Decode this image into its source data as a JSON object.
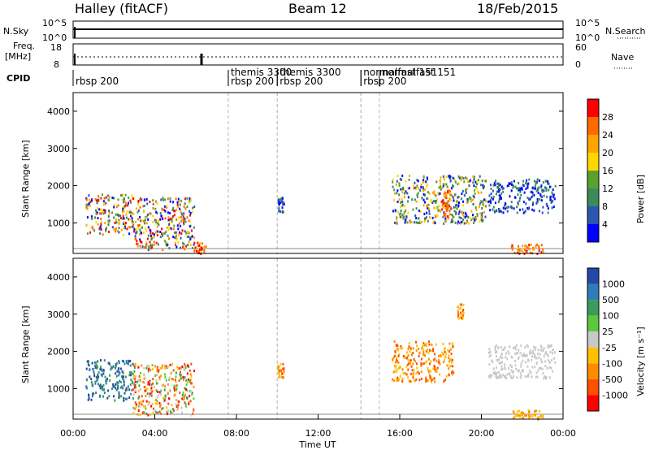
{
  "header": {
    "station": "Halley (fitACF)",
    "beam": "Beam 12",
    "date": "18/Feb/2015"
  },
  "strips": {
    "nsky_label": "N.Sky",
    "nsky_ticks": [
      "10^5",
      "10^0"
    ],
    "nsearch_label": "N.Search",
    "nsearch_ticks": [
      "10^5",
      "10^0"
    ],
    "freq_label_top": "Freq.",
    "freq_label_bottom": "[MHz]",
    "freq_ticks": [
      "18",
      "8"
    ],
    "nave_label": "Nave",
    "nave_ticks": [
      "60",
      "0"
    ],
    "cpid_label": "CPID"
  },
  "cpid_segments": [
    {
      "start_hour": 0.0,
      "label": "rbsp 200",
      "row": 2
    },
    {
      "start_hour": 7.6,
      "label": "themis 3300",
      "row": 1
    },
    {
      "start_hour": 7.6,
      "label": "rbsp 200",
      "row": 2
    },
    {
      "start_hour": 10.0,
      "label": "themis 3300",
      "row": 1
    },
    {
      "start_hour": 10.0,
      "label": "rbsp 200",
      "row": 2
    },
    {
      "start_hour": 14.1,
      "label": "normalfast 151",
      "row": 1
    },
    {
      "start_hour": 14.1,
      "label": "rbsp 200",
      "row": 2
    },
    {
      "start_hour": 15.0,
      "label": "normalfast 151",
      "row": 1
    }
  ],
  "chart_data": [
    {
      "type": "heatmap",
      "parameter": "Power",
      "ylabel": "Slant Range [km]",
      "ylim": [
        180,
        4500
      ],
      "yticks": [
        "4000",
        "3000",
        "2000",
        "1000"
      ],
      "xlim": [
        0,
        24
      ],
      "colorbar_label": "Power [dB]",
      "colorbar_ticks": [
        "28",
        "24",
        "20",
        "16",
        "12",
        "8",
        "4"
      ],
      "colorbar_colors": [
        "#ff0000",
        "#ff6a00",
        "#ffa500",
        "#ffd700",
        "#5aa02c",
        "#3a8a5a",
        "#2c56b0",
        "#0000ff"
      ],
      "regions": [
        {
          "t": [
            0.6,
            2.9
          ],
          "r": [
            700,
            1800
          ],
          "level": "mixed-high"
        },
        {
          "t": [
            2.9,
            5.9
          ],
          "r": [
            300,
            1700
          ],
          "level": "mixed-high"
        },
        {
          "t": [
            5.9,
            6.5
          ],
          "r": [
            200,
            500
          ],
          "level": "high"
        },
        {
          "t": [
            10.0,
            10.3
          ],
          "r": [
            1300,
            1700
          ],
          "level": "low"
        },
        {
          "t": [
            15.6,
            20.2
          ],
          "r": [
            1000,
            2300
          ],
          "level": "mixed"
        },
        {
          "t": [
            18.0,
            18.5
          ],
          "r": [
            1200,
            1900
          ],
          "level": "high"
        },
        {
          "t": [
            20.3,
            23.6
          ],
          "r": [
            1300,
            2200
          ],
          "level": "low"
        },
        {
          "t": [
            21.4,
            23.0
          ],
          "r": [
            200,
            450
          ],
          "level": "high"
        }
      ]
    },
    {
      "type": "heatmap",
      "parameter": "Velocity",
      "ylabel": "Slant Range [km]",
      "ylim": [
        180,
        4500
      ],
      "yticks": [
        "4000",
        "3000",
        "2000",
        "1000"
      ],
      "xlim": [
        0,
        24
      ],
      "xticks": [
        "00:00",
        "04:00",
        "08:00",
        "12:00",
        "16:00",
        "20:00",
        "00:00"
      ],
      "xlabel": "Time UT",
      "colorbar_label": "Velocity [m s⁻¹]",
      "colorbar_ticks": [
        "1000",
        "500",
        "100",
        "25",
        "-25",
        "-100",
        "-500",
        "-1000"
      ],
      "colorbar_colors": [
        "#2448a8",
        "#2e7db8",
        "#3c9a5a",
        "#5cc83c",
        "#c8c8c8",
        "#ffc000",
        "#ff8c00",
        "#ff5000",
        "#ff0000"
      ],
      "regions": [
        {
          "t": [
            0.6,
            2.9
          ],
          "r": [
            700,
            1800
          ],
          "level": "positive"
        },
        {
          "t": [
            2.9,
            5.9
          ],
          "r": [
            300,
            1700
          ],
          "level": "mixed"
        },
        {
          "t": [
            10.0,
            10.3
          ],
          "r": [
            1300,
            1700
          ],
          "level": "negative"
        },
        {
          "t": [
            15.6,
            18.6
          ],
          "r": [
            1200,
            2300
          ],
          "level": "negative"
        },
        {
          "t": [
            18.8,
            19.1
          ],
          "r": [
            2900,
            3300
          ],
          "level": "negative"
        },
        {
          "t": [
            20.3,
            23.6
          ],
          "r": [
            1300,
            2200
          ],
          "level": "near-zero"
        },
        {
          "t": [
            21.4,
            23.0
          ],
          "r": [
            200,
            450
          ],
          "level": "negative-weak"
        }
      ]
    }
  ]
}
